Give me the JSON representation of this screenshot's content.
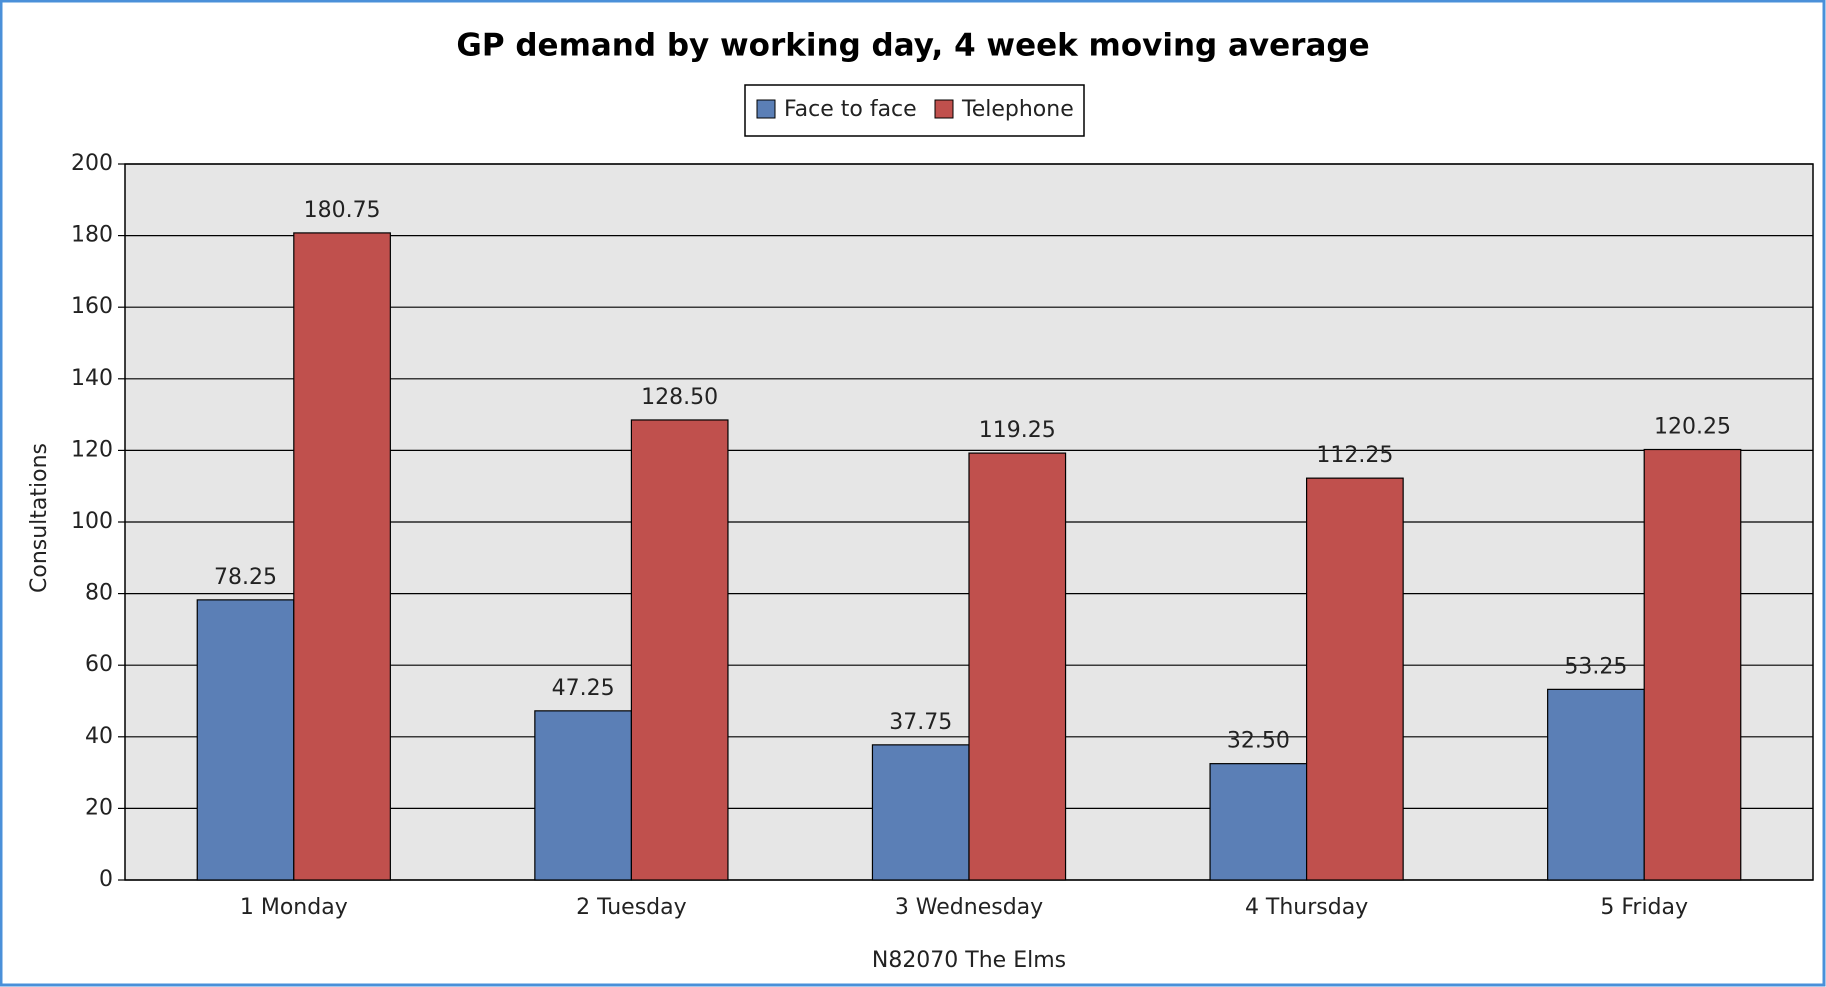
{
  "chart_data": {
    "type": "bar",
    "title": "GP demand by working day, 4 week moving average",
    "xlabel": "N82070 The Elms",
    "ylabel": "Consultations",
    "categories": [
      "1 Monday",
      "2 Tuesday",
      "3 Wednesday",
      "4 Thursday",
      "5 Friday"
    ],
    "series": [
      {
        "name": "Face to face",
        "color": "#5b7fb6",
        "values": [
          78.25,
          47.25,
          37.75,
          32.5,
          53.25
        ],
        "value_labels": [
          "78.25",
          "47.25",
          "37.75",
          "32.50",
          "53.25"
        ]
      },
      {
        "name": "Telephone",
        "color": "#c0504d",
        "values": [
          180.75,
          128.5,
          119.25,
          112.25,
          120.25
        ],
        "value_labels": [
          "180.75",
          "128.50",
          "119.25",
          "112.25",
          "120.25"
        ]
      }
    ],
    "ylim": [
      0,
      200
    ],
    "yticks": [
      0,
      20,
      40,
      60,
      80,
      100,
      120,
      140,
      160,
      180,
      200
    ],
    "grid": true,
    "legend": "top"
  }
}
